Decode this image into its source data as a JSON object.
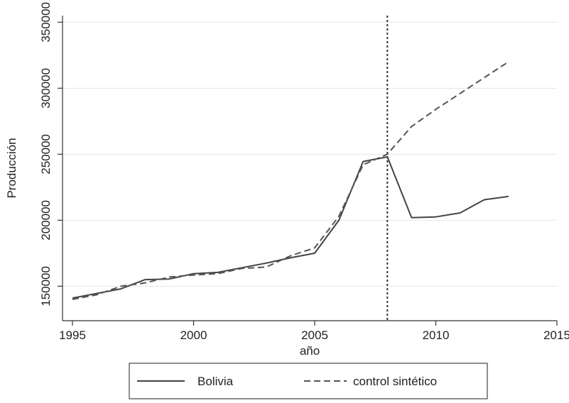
{
  "chart_data": {
    "type": "line",
    "title": "",
    "xlabel": "año",
    "ylabel": "Producción",
    "xlim": [
      1995,
      2015
    ],
    "ylim": [
      140000,
      355000
    ],
    "xticks": [
      1995,
      2000,
      2005,
      2010,
      2015
    ],
    "yticks": [
      150000,
      200000,
      250000,
      300000,
      350000
    ],
    "xtick_labels": [
      "1995",
      "2000",
      "2005",
      "2010",
      "2015"
    ],
    "ytick_labels": [
      "150000",
      "200000",
      "250000",
      "300000",
      "350000"
    ],
    "grid": true,
    "legend_position": "bottom",
    "reference_line": {
      "x": 2008,
      "style": "dotted",
      "color": "#333333"
    },
    "x": [
      1995,
      1996,
      1997,
      1998,
      1999,
      2000,
      2001,
      2002,
      2003,
      2004,
      2005,
      2006,
      2007,
      2008,
      2009,
      2010,
      2011,
      2012,
      2013
    ],
    "series": [
      {
        "name": "Bolivia",
        "style": "solid",
        "color": "#444444",
        "values": [
          141000,
          144500,
          148000,
          155000,
          155500,
          159500,
          160500,
          164000,
          167500,
          171500,
          175000,
          200000,
          244500,
          248000,
          202000,
          202500,
          205500,
          215500,
          218000
        ]
      },
      {
        "name": "control sintético",
        "style": "dashed",
        "color": "#555555",
        "values": [
          140000,
          143500,
          150000,
          152500,
          157000,
          158500,
          159500,
          163500,
          164500,
          173000,
          179000,
          203000,
          242000,
          250000,
          271000,
          284000,
          296000,
          308000,
          320000
        ]
      }
    ]
  }
}
